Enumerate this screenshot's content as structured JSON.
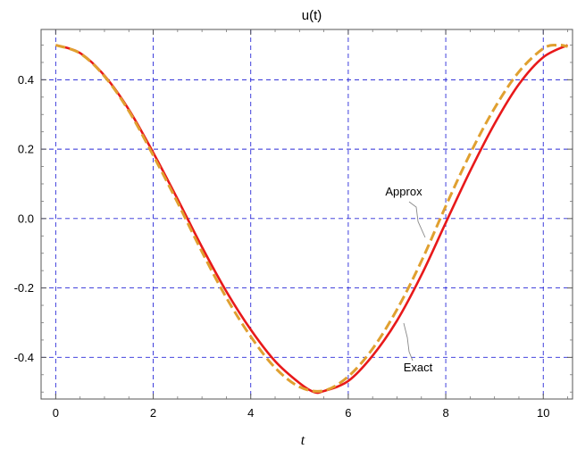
{
  "chart_data": {
    "type": "line",
    "title": "u(t)",
    "xlabel": "t",
    "ylabel": "",
    "xlim": [
      -0.3,
      10.6
    ],
    "ylim": [
      -0.52,
      0.545
    ],
    "xticks": [
      0,
      2,
      4,
      6,
      8,
      10
    ],
    "yticks": [
      -0.4,
      -0.2,
      0.0,
      0.2,
      0.4
    ],
    "xtick_labels": [
      "0",
      "2",
      "4",
      "6",
      "8",
      "10"
    ],
    "ytick_labels": [
      "-0.4",
      "-0.2",
      "0.0",
      "0.2",
      "0.4"
    ],
    "grid": true,
    "series": [
      {
        "name": "Exact",
        "color": "#e8191a",
        "style": "solid",
        "x": [
          0,
          0.5,
          1,
          1.5,
          2,
          2.5,
          3,
          3.5,
          4,
          4.5,
          5,
          5.3,
          5.5,
          6,
          6.5,
          7,
          7.5,
          8,
          8.5,
          9,
          9.5,
          10,
          10.5
        ],
        "y": [
          0.5,
          0.477,
          0.412,
          0.314,
          0.19,
          0.056,
          -0.082,
          -0.21,
          -0.32,
          -0.411,
          -0.474,
          -0.5,
          -0.497,
          -0.468,
          -0.395,
          -0.294,
          -0.163,
          -0.012,
          0.137,
          0.273,
          0.387,
          0.465,
          0.5
        ]
      },
      {
        "name": "Approx",
        "color": "#e0a030",
        "style": "dashed",
        "x": [
          0,
          0.5,
          1,
          1.5,
          2,
          2.5,
          3,
          3.5,
          4,
          4.5,
          5,
          5.5,
          6,
          6.5,
          7,
          7.5,
          8,
          8.5,
          9,
          9.5,
          10,
          10.3,
          10.5
        ],
        "y": [
          0.5,
          0.476,
          0.41,
          0.31,
          0.182,
          0.046,
          -0.096,
          -0.228,
          -0.34,
          -0.43,
          -0.485,
          -0.496,
          -0.455,
          -0.375,
          -0.262,
          -0.123,
          0.036,
          0.187,
          0.318,
          0.423,
          0.49,
          0.5,
          0.496
        ]
      }
    ],
    "annotations": [
      {
        "text": "Approx",
        "series": "Approx"
      },
      {
        "text": "Exact",
        "series": "Exact"
      }
    ]
  }
}
